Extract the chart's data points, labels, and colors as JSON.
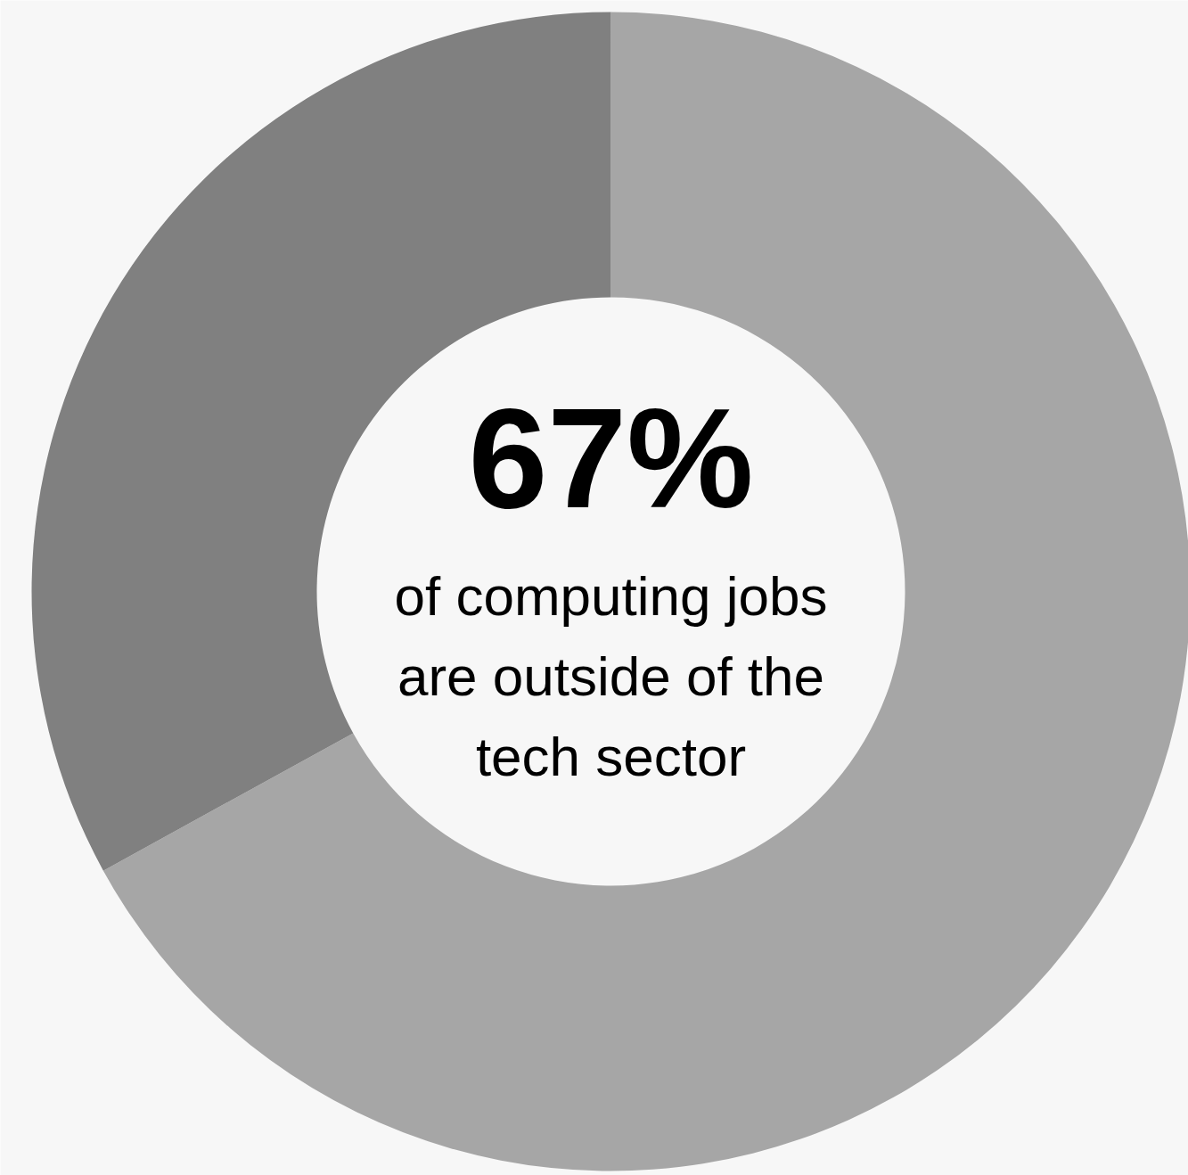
{
  "chart_data": {
    "type": "donut",
    "categories": [
      null,
      null
    ],
    "values": [
      67,
      33
    ],
    "colors": [
      "#a6a6a6",
      "#808080"
    ],
    "annotations": [
      "67%",
      "of computing jobs are outside of the tech sector"
    ]
  }
}
